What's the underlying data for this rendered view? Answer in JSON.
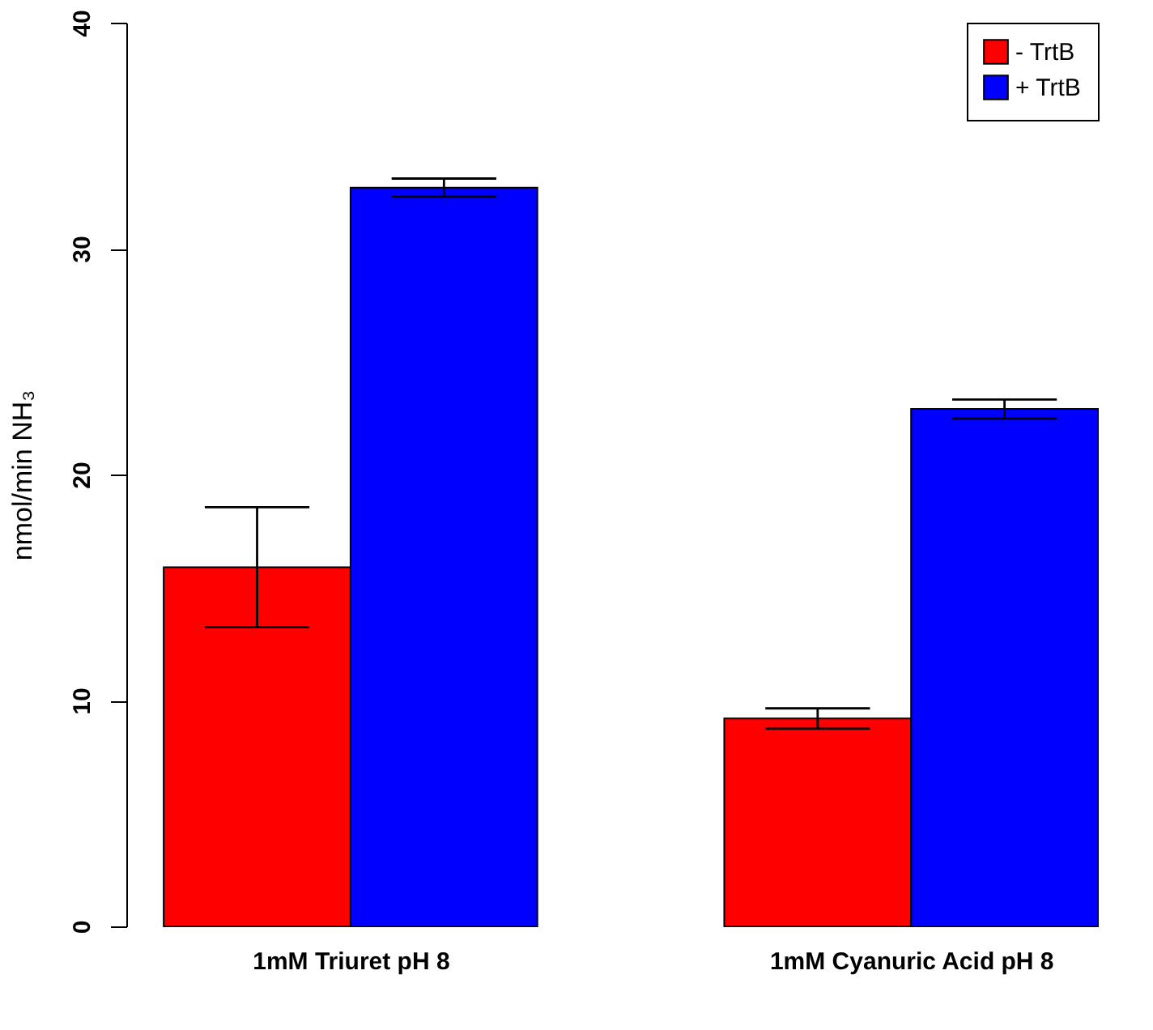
{
  "chart_data": {
    "type": "bar",
    "ylabel": "nmol/min NH₃",
    "categories": [
      "1mM Triuret pH 8",
      "1mM Cyanuric Acid pH 8"
    ],
    "series": [
      {
        "name": "- TrtB",
        "color": "#ff0000",
        "values": [
          15.9,
          9.2
        ],
        "errors": [
          2.65,
          0.45
        ]
      },
      {
        "name": "+ TrtB",
        "color": "#0000ff",
        "values": [
          32.7,
          22.9
        ],
        "errors": [
          0.4,
          0.42
        ]
      }
    ],
    "ylim": [
      0,
      40
    ],
    "yticks": [
      0,
      10,
      20,
      30,
      40
    ],
    "grid": false,
    "legend": "top right"
  }
}
